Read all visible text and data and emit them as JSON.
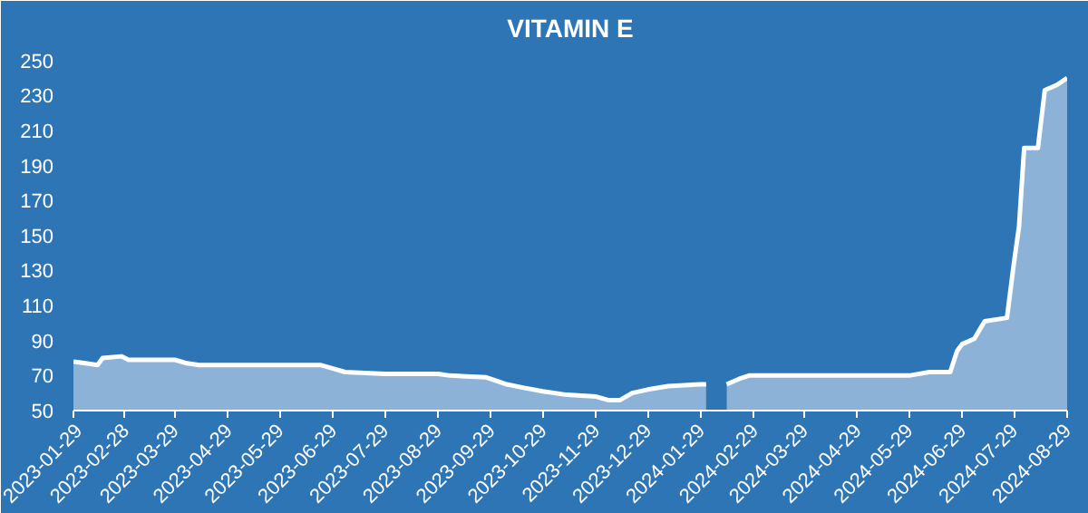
{
  "chart_data": {
    "type": "area",
    "title": "VITAMIN E",
    "x": [
      "2023-01-29",
      "2023-02-05",
      "2023-02-12",
      "2023-02-15",
      "2023-02-26",
      "2023-03-02",
      "2023-03-29",
      "2023-04-05",
      "2023-04-12",
      "2023-05-15",
      "2023-06-22",
      "2023-06-29",
      "2023-07-06",
      "2023-07-29",
      "2023-08-29",
      "2023-09-05",
      "2023-09-26",
      "2023-10-02",
      "2023-10-08",
      "2023-10-18",
      "2023-10-29",
      "2023-11-12",
      "2023-11-29",
      "2023-12-06",
      "2023-12-13",
      "2023-12-20",
      "2023-12-29",
      "2024-01-10",
      "2024-01-29",
      "2024-02-01",
      "2024-02-07",
      "2024-02-13",
      "2024-02-20",
      "2024-02-26",
      "2024-03-29",
      "2024-04-29",
      "2024-05-29",
      "2024-06-10",
      "2024-06-22",
      "2024-06-26",
      "2024-06-29",
      "2024-07-06",
      "2024-07-12",
      "2024-07-25",
      "2024-07-29",
      "2024-08-01",
      "2024-08-04",
      "2024-08-12",
      "2024-08-16",
      "2024-08-23",
      "2024-08-29"
    ],
    "series": [
      {
        "color": "#ffffff",
        "values": [
          78,
          77,
          76,
          80,
          81,
          79,
          79,
          77,
          76,
          76,
          76,
          74,
          72,
          71,
          71,
          70,
          69,
          67,
          65,
          63,
          61,
          59,
          58,
          56,
          56,
          60,
          62,
          64,
          65,
          65,
          null,
          65,
          68,
          70,
          70,
          70,
          70,
          72,
          72,
          84,
          88,
          91,
          101,
          103,
          134,
          155,
          200,
          200,
          233,
          236,
          240
        ]
      }
    ],
    "ylim": [
      50,
      255
    ],
    "yticks": [
      50,
      70,
      90,
      110,
      130,
      150,
      170,
      190,
      210,
      230,
      250
    ],
    "xlim": [
      "2023-01-29",
      "2024-08-29"
    ],
    "xticks": [
      "2023-01-29",
      "2023-02-28",
      "2023-03-29",
      "2023-04-29",
      "2023-05-29",
      "2023-06-29",
      "2023-07-29",
      "2023-08-29",
      "2023-09-29",
      "2023-10-29",
      "2023-11-29",
      "2023-12-29",
      "2024-01-29",
      "2024-02-29",
      "2024-03-29",
      "2024-04-29",
      "2024-05-29",
      "2024-06-29",
      "2024-07-29",
      "2024-08-29"
    ],
    "grid": false
  }
}
